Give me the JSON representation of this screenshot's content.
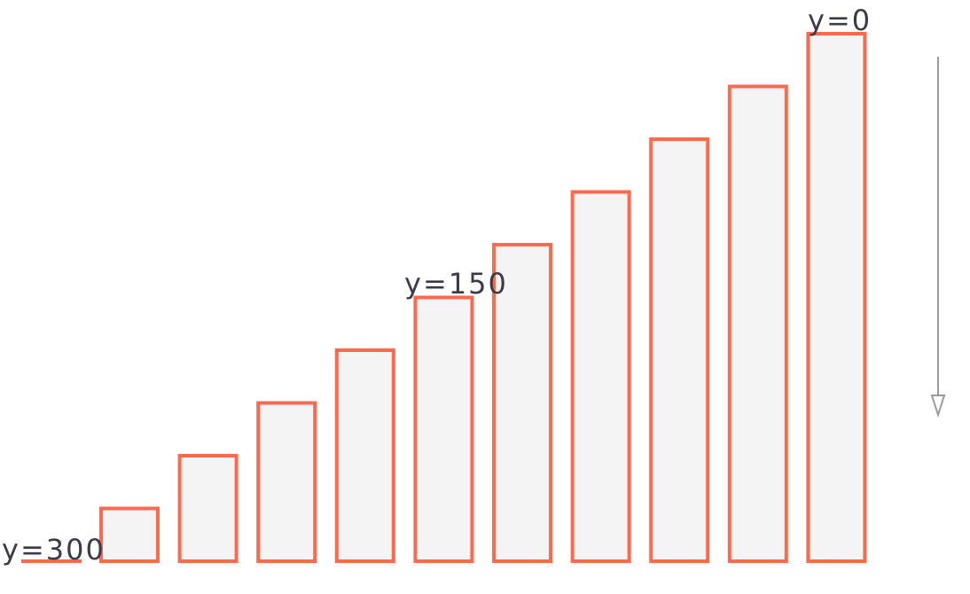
{
  "labels": {
    "bottom": "y=300",
    "middle": "y=150",
    "top": "y=0"
  },
  "chart_data": {
    "type": "bar",
    "bar_count": 10,
    "y_min": 0,
    "y_max": 300,
    "y_inverted": true,
    "bar_top_y": [
      270,
      240,
      210,
      180,
      150,
      120,
      90,
      60,
      30,
      0
    ],
    "bar_fill_color": "#f4f4f4",
    "bar_stroke_color": "#ff6a4f",
    "arrow_direction": "down",
    "arrow_color": "#9a9a9a"
  }
}
